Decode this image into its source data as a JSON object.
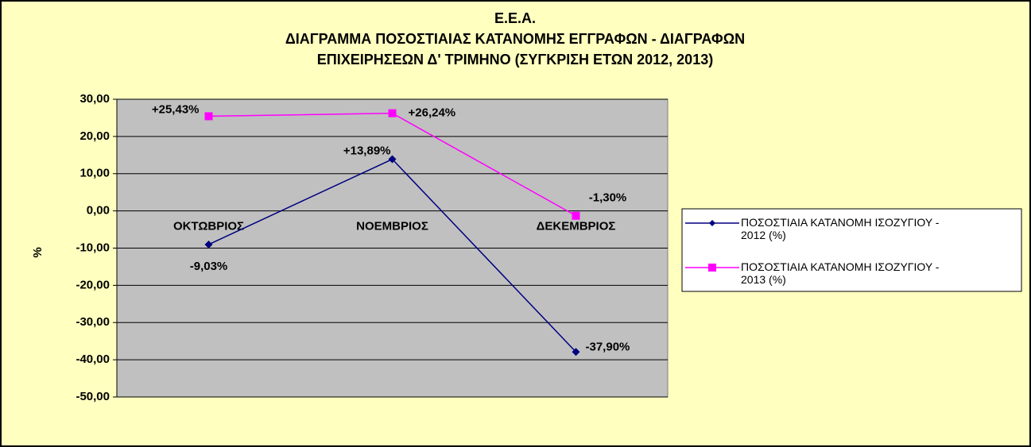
{
  "chart_data": {
    "type": "line",
    "title": [
      "Ε.Ε.Α.",
      "ΔΙΑΓΡΑΜΜΑ ΠΟΣΟΣΤΙΑΙΑΣ ΚΑΤΑΝΟΜΗΣ ΕΓΓΡΑΦΩΝ - ΔΙΑΓΡΑΦΩΝ",
      "ΕΠΙΧΕΙΡΗΣΕΩΝ Δ' ΤΡΙΜΗΝΟ (ΣΥΓΚΡΙΣΗ ΕΤΩΝ 2012, 2013)"
    ],
    "y_label": "%",
    "categories": [
      "ΟΚΤΩΒΡΙΟΣ",
      "ΝΟΕΜΒΡΙΟΣ",
      "ΔΕΚΕΜΒΡΙΟΣ"
    ],
    "series": [
      {
        "name": "ΠΟΣΟΣΤΙΑΙΑ ΚΑΤΑΝΟΜΗ ΙΣΟΖΥΓΙΟΥ - 2012 (%)",
        "color": "#000080",
        "marker": "diamond",
        "values": [
          -9.03,
          13.89,
          -37.9
        ],
        "value_labels": [
          "-9,03%",
          "+13,89%",
          "-37,90%"
        ]
      },
      {
        "name": "ΠΟΣΟΣΤΙΑΙΑ ΚΑΤΑΝΟΜΗ ΙΣΟΖΥΓΙΟΥ - 2013 (%)",
        "color": "#ff00ff",
        "marker": "square",
        "values": [
          25.43,
          26.24,
          -1.3
        ],
        "value_labels": [
          "+25,43%",
          "+26,24%",
          "-1,30%"
        ]
      }
    ],
    "ylim": [
      -50,
      30
    ],
    "yticks": [
      {
        "value": -50,
        "label": "-50,00"
      },
      {
        "value": -40,
        "label": "-40,00"
      },
      {
        "value": -30,
        "label": "-30,00"
      },
      {
        "value": -20,
        "label": "-20,00"
      },
      {
        "value": -10,
        "label": "-10,00"
      },
      {
        "value": 0,
        "label": "0,00"
      },
      {
        "value": 10,
        "label": "10,00"
      },
      {
        "value": 20,
        "label": "20,00"
      },
      {
        "value": 30,
        "label": "30,00"
      }
    ],
    "grid": true,
    "legend": "right"
  }
}
